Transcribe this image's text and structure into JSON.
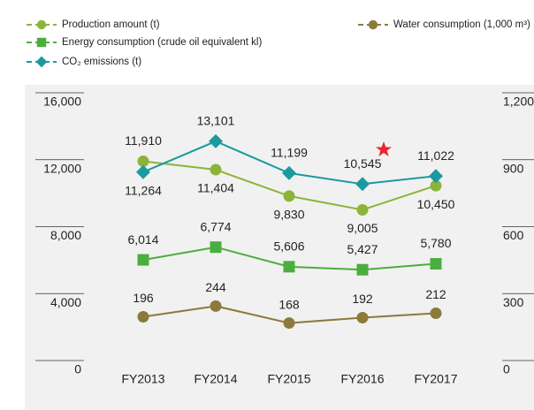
{
  "chart_data": {
    "type": "line",
    "categories": [
      "FY2013",
      "FY2014",
      "FY2015",
      "FY2016",
      "FY2017"
    ],
    "series": [
      {
        "name": "Production amount (t)",
        "color": "#8cb43a",
        "marker": "circle",
        "values": [
          11910,
          11404,
          9830,
          9005,
          10450
        ],
        "value_labels": [
          "11,910",
          "11,404",
          "9,830",
          "9,005",
          "10,450"
        ]
      },
      {
        "name": "Energy consumption (crude oil equivalent kl)",
        "color": "#4cad3f",
        "marker": "square",
        "values": [
          6014,
          6774,
          5606,
          5427,
          5780
        ],
        "value_labels": [
          "6,014",
          "6,774",
          "5,606",
          "5,427",
          "5,780"
        ]
      },
      {
        "name": "CO₂ emissions (t)",
        "color": "#1b9aa0",
        "marker": "diamond",
        "values": [
          11264,
          13101,
          11199,
          10545,
          11022
        ],
        "value_labels": [
          "11,264",
          "13,101",
          "11,199",
          "10,545",
          "11,022"
        ]
      },
      {
        "name": "Water consumption (1,000 m³)",
        "color": "#8b7a3b",
        "marker": "circle",
        "axis": "y2",
        "values": [
          196,
          244,
          168,
          192,
          212
        ]
      }
    ],
    "ylim": [
      0,
      16000
    ],
    "yticks": [
      0,
      {
        "value": 4000,
        "label": "4,000"
      },
      {
        "value": 8000,
        "label": "8,000"
      },
      {
        "value": 12000,
        "label": "12,000"
      },
      {
        "value": 16000,
        "label": "16,000"
      }
    ],
    "y2lim": [
      0,
      1200
    ],
    "y2ticks": [
      0,
      300,
      600,
      900,
      {
        "value": 1200,
        "label": "1,200"
      }
    ]
  }
}
